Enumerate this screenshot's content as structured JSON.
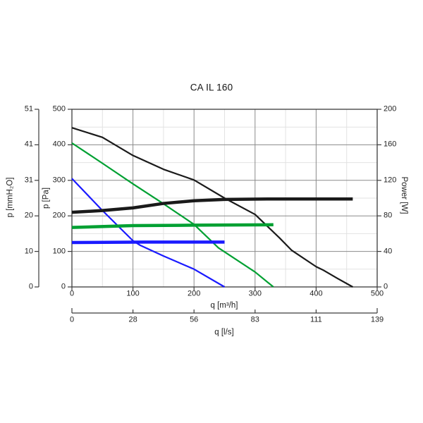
{
  "title": "CA IL 160",
  "colors": {
    "black": "#1a1a1a",
    "green": "#00a032",
    "blue": "#1a1aff",
    "grid_major": "#8a8a8a",
    "grid_minor": "#e2e2e2",
    "axis": "#3c3c3c",
    "text": "#1f1f1f",
    "background": "#ffffff"
  },
  "chart_data": {
    "type": "line",
    "title": "CA IL 160",
    "grid": {
      "x_minor": [
        50,
        150,
        250,
        350,
        450
      ],
      "y_minor": [
        50,
        150,
        250,
        350,
        450
      ]
    },
    "x_axis_primary": {
      "label": "q [m³/h]",
      "ticks": [
        0,
        100,
        200,
        300,
        400,
        500
      ],
      "range": [
        0,
        500
      ]
    },
    "x_axis_secondary": {
      "label": "q [l/s]",
      "ticks": [
        0,
        28,
        56,
        83,
        111,
        139
      ]
    },
    "y_axis_pa": {
      "label": "p [Pa]",
      "ticks": [
        0,
        100,
        200,
        300,
        400,
        500
      ],
      "range": [
        0,
        500
      ]
    },
    "y_axis_mmh2o": {
      "label": "p [mmH₂O]",
      "ticks": [
        0,
        10,
        20,
        31,
        41,
        51
      ]
    },
    "y_axis_power": {
      "label": "Power [W]",
      "ticks": [
        0,
        40,
        80,
        120,
        160,
        200
      ],
      "range": [
        0,
        200
      ]
    },
    "series": [
      {
        "name": "pressure-curve-speed-3",
        "color": "black",
        "width": 2.2,
        "axis": "pa",
        "points": [
          [
            0,
            448
          ],
          [
            50,
            421
          ],
          [
            100,
            370
          ],
          [
            150,
            331
          ],
          [
            200,
            301
          ],
          [
            250,
            250
          ],
          [
            300,
            204
          ],
          [
            340,
            138
          ],
          [
            360,
            103
          ],
          [
            400,
            57
          ],
          [
            412,
            47
          ],
          [
            435,
            24
          ],
          [
            460,
            0
          ]
        ]
      },
      {
        "name": "pressure-curve-speed-2",
        "color": "green",
        "width": 2.2,
        "axis": "pa",
        "points": [
          [
            0,
            405
          ],
          [
            50,
            348
          ],
          [
            100,
            290
          ],
          [
            150,
            234
          ],
          [
            200,
            176
          ],
          [
            240,
            110
          ],
          [
            300,
            42
          ],
          [
            330,
            0
          ]
        ]
      },
      {
        "name": "pressure-curve-speed-1",
        "color": "blue",
        "width": 2.2,
        "axis": "pa",
        "points": [
          [
            0,
            305
          ],
          [
            50,
            215
          ],
          [
            100,
            130
          ],
          [
            112,
            117
          ],
          [
            150,
            87
          ],
          [
            200,
            50
          ],
          [
            250,
            0
          ]
        ]
      },
      {
        "name": "power-curve-speed-3",
        "color": "black",
        "width": 4.5,
        "axis": "power",
        "points": [
          [
            0,
            84
          ],
          [
            50,
            86
          ],
          [
            100,
            89
          ],
          [
            150,
            94
          ],
          [
            200,
            97
          ],
          [
            250,
            98.5
          ],
          [
            320,
            99
          ],
          [
            460,
            99
          ]
        ]
      },
      {
        "name": "power-curve-speed-2",
        "color": "green",
        "width": 4.5,
        "axis": "power",
        "points": [
          [
            0,
            67
          ],
          [
            100,
            69
          ],
          [
            200,
            69.5
          ],
          [
            330,
            70
          ]
        ]
      },
      {
        "name": "power-curve-speed-1",
        "color": "blue",
        "width": 4.5,
        "axis": "power",
        "points": [
          [
            0,
            50
          ],
          [
            120,
            50.5
          ],
          [
            250,
            50.5
          ]
        ]
      }
    ]
  }
}
